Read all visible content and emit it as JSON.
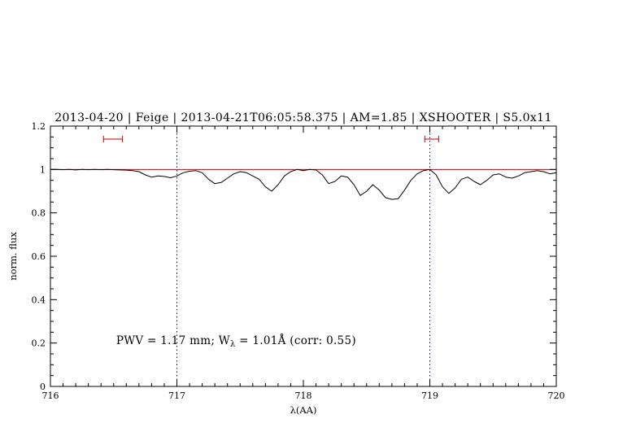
{
  "colors": {
    "title": "#0000cd",
    "annotation": "#0000cd",
    "spectrum": "#000000",
    "continuum": "#cc0000",
    "marker": "#cc0000",
    "gridline": "#00008b",
    "frame": "#000000"
  },
  "chart_data": {
    "type": "line",
    "title": "2013-04-20 | Feige | 2013-04-21T06:05:58.375 | AM=1.85 | XSHOOTER | S5.0x11",
    "xlabel": "λ(AA)",
    "ylabel": "norm. flux",
    "xlim": [
      716,
      720
    ],
    "ylim": [
      0,
      1.2
    ],
    "grid": "off",
    "x_ticks": [
      716,
      717,
      718,
      719,
      720
    ],
    "x_tick_labels": [
      "716",
      "717",
      "718",
      "719",
      "720"
    ],
    "y_ticks": [
      0,
      0.2,
      0.4,
      0.6,
      0.8,
      1,
      1.2
    ],
    "y_tick_labels": [
      "0",
      "0.2",
      "0.4",
      "0.6",
      "0.8",
      "1",
      "1.2"
    ],
    "vlines": [
      717,
      719
    ],
    "hline": 1.0,
    "markers": [
      {
        "x_min": 716.42,
        "x_max": 716.57,
        "y": 1.14
      },
      {
        "x_min": 718.96,
        "x_max": 719.07,
        "y": 1.14
      }
    ],
    "annotation": {
      "x": 716.52,
      "y": 0.195,
      "parts": [
        {
          "text": "PWV  =  1.17  mm;  W"
        },
        {
          "text": "λ",
          "sub": true
        },
        {
          "text": "  =  1.01Å  (corr:  0.55)"
        }
      ]
    },
    "series": [
      {
        "name": "spectrum",
        "x": [
          716.0,
          716.05,
          716.1,
          716.15,
          716.2,
          716.25,
          716.3,
          716.35,
          716.4,
          716.45,
          716.5,
          716.55,
          716.6,
          716.65,
          716.7,
          716.75,
          716.8,
          716.85,
          716.9,
          716.95,
          717.0,
          717.05,
          717.1,
          717.15,
          717.2,
          717.25,
          717.3,
          717.35,
          717.4,
          717.45,
          717.5,
          717.55,
          717.6,
          717.65,
          717.7,
          717.75,
          717.8,
          717.85,
          717.9,
          717.95,
          718.0,
          718.05,
          718.1,
          718.15,
          718.2,
          718.25,
          718.3,
          718.35,
          718.4,
          718.45,
          718.5,
          718.55,
          718.6,
          718.65,
          718.7,
          718.75,
          718.8,
          718.85,
          718.9,
          718.95,
          719.0,
          719.05,
          719.1,
          719.15,
          719.2,
          719.25,
          719.3,
          719.35,
          719.4,
          719.45,
          719.5,
          719.55,
          719.6,
          719.65,
          719.7,
          719.75,
          719.8,
          719.85,
          719.9,
          719.95,
          720.0
        ],
        "y": [
          1.0,
          1.0,
          0.999,
          1.0,
          0.998,
          1.0,
          0.999,
          1.0,
          0.999,
          1.0,
          0.999,
          0.998,
          0.997,
          0.995,
          0.99,
          0.975,
          0.965,
          0.97,
          0.968,
          0.962,
          0.97,
          0.985,
          0.992,
          0.995,
          0.985,
          0.955,
          0.935,
          0.94,
          0.96,
          0.98,
          0.99,
          0.985,
          0.97,
          0.955,
          0.92,
          0.9,
          0.93,
          0.97,
          0.99,
          1.0,
          0.995,
          1.0,
          0.998,
          0.975,
          0.935,
          0.945,
          0.97,
          0.965,
          0.93,
          0.88,
          0.9,
          0.93,
          0.905,
          0.87,
          0.862,
          0.865,
          0.905,
          0.95,
          0.98,
          0.995,
          1.0,
          0.975,
          0.92,
          0.89,
          0.915,
          0.955,
          0.965,
          0.945,
          0.93,
          0.95,
          0.975,
          0.98,
          0.965,
          0.96,
          0.97,
          0.985,
          0.99,
          0.995,
          0.99,
          0.98,
          0.985
        ]
      }
    ]
  }
}
